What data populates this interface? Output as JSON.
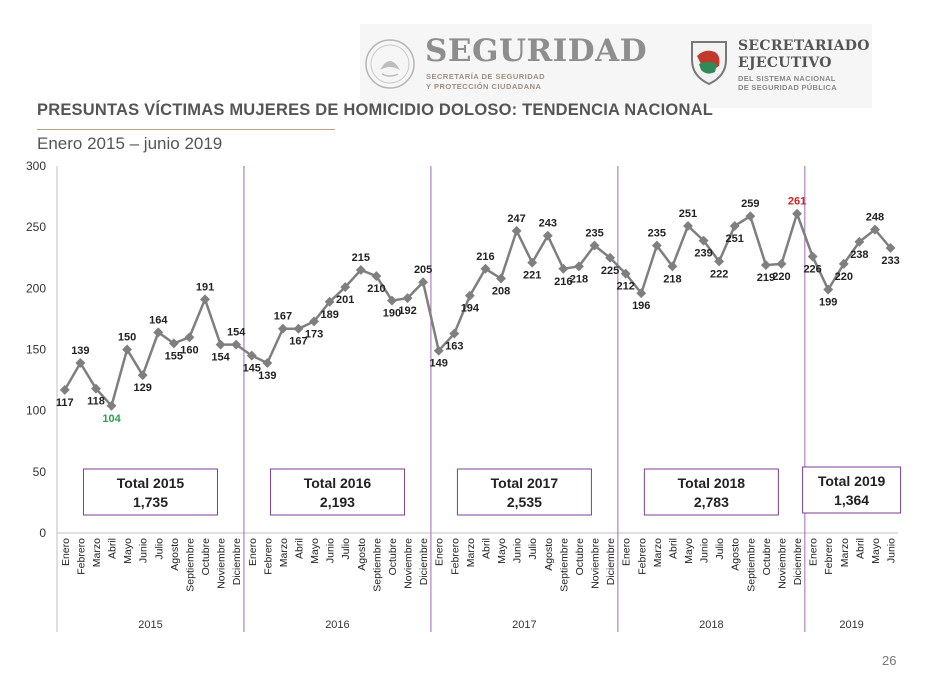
{
  "header": {
    "seguridad_title": "SEGURIDAD",
    "seguridad_sub1": "SECRETARÍA DE SEGURIDAD",
    "seguridad_sub2": "Y PROTECCIÓN CIUDADANA",
    "se_title1": "SECRETARIADO",
    "se_title2": "EJECUTIVO",
    "se_sub1": "DEL SISTEMA NACIONAL",
    "se_sub2": "DE SEGURIDAD PÚBLICA",
    "seal_icon": "mexico-seal-icon",
    "shield_icon": "sesnsp-shield-icon"
  },
  "slide": {
    "title": "PRESUNTAS VÍCTIMAS MUJERES DE HOMICIDIO DOLOSO: TENDENCIA NACIONAL",
    "subtitle": "Enero 2015 – junio 2019",
    "page_number": "26"
  },
  "colors": {
    "line": "#7f7f7f",
    "marker": "#7f7f7f",
    "year_divider": "#9b6bb5",
    "total_box_border": "#7b3f8f",
    "min_label": "#2e9e4f",
    "max_label": "#cc2222",
    "title_rule": "#b7a18c"
  },
  "chart_data": {
    "type": "line",
    "ylim": [
      0,
      300
    ],
    "yticks": [
      0,
      50,
      100,
      150,
      200,
      250,
      300
    ],
    "months": [
      "Enero",
      "Febrero",
      "Marzo",
      "Abril",
      "Mayo",
      "Junio",
      "Julio",
      "Agosto",
      "Septiembre",
      "Octubre",
      "Noviembre",
      "Diciembre"
    ],
    "years": [
      {
        "year": "2015",
        "values": [
          117,
          139,
          118,
          104,
          150,
          129,
          164,
          155,
          160,
          191,
          154,
          154
        ],
        "total_label": "Total 2015",
        "total_value": "1,735"
      },
      {
        "year": "2016",
        "values": [
          145,
          139,
          167,
          167,
          173,
          189,
          201,
          215,
          210,
          190,
          192,
          205
        ],
        "total_label": "Total 2016",
        "total_value": "2,193"
      },
      {
        "year": "2017",
        "values": [
          149,
          163,
          194,
          216,
          208,
          247,
          221,
          243,
          216,
          218,
          235,
          225
        ],
        "total_label": "Total 2017",
        "total_value": "2,535"
      },
      {
        "year": "2018",
        "values": [
          212,
          196,
          235,
          218,
          251,
          239,
          222,
          251,
          259,
          219,
          220,
          261
        ],
        "total_label": "Total 2018",
        "total_value": "2,783"
      },
      {
        "year": "2019",
        "values": [
          226,
          199,
          220,
          238,
          248,
          233
        ],
        "total_label": "Total 2019",
        "total_value": "1,364"
      }
    ],
    "min_point": {
      "year": "2015",
      "month": "Abril",
      "value": 104
    },
    "max_point": {
      "year": "2018",
      "month": "Diciembre",
      "value": 261
    },
    "grid": false,
    "legend": "none"
  }
}
